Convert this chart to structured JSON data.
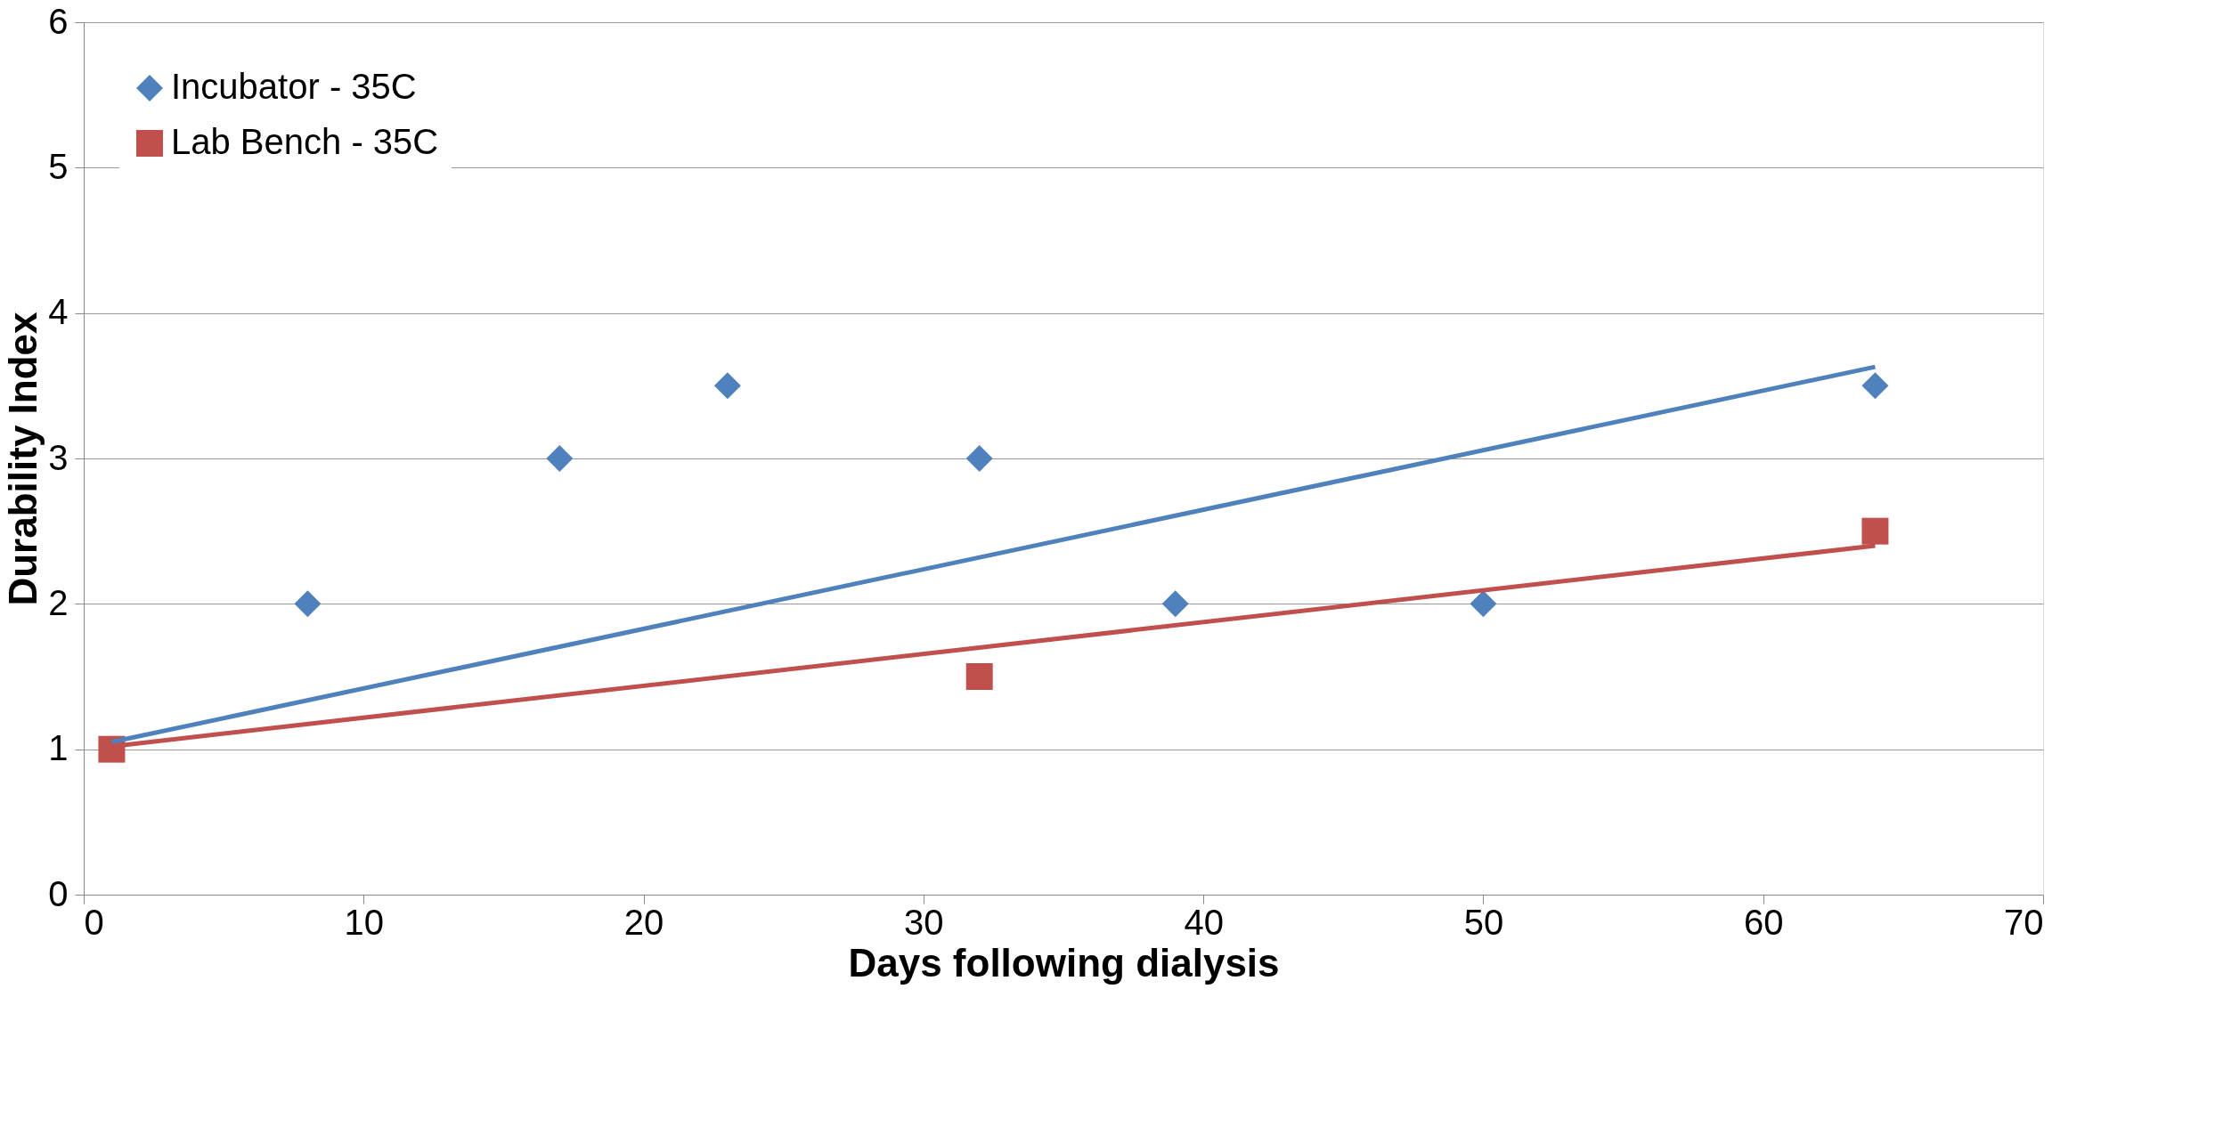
{
  "chart_data": {
    "type": "scatter",
    "xlabel": "Days following dialysis",
    "ylabel": "Durability Index",
    "xlim": [
      0,
      70
    ],
    "xticks": [
      0,
      10,
      20,
      30,
      40,
      50,
      60,
      70
    ],
    "ylim": [
      0,
      6
    ],
    "yticks": [
      0,
      1,
      2,
      3,
      4,
      5,
      6
    ],
    "grid": "y",
    "legend": "top left",
    "series": [
      {
        "name": "Incubator - 35C",
        "color": "#4f81bd",
        "marker": "diamond",
        "x": [
          8,
          17,
          23,
          32,
          39,
          50,
          64
        ],
        "values": [
          2,
          3,
          3.5,
          3,
          2,
          2,
          3.5
        ]
      },
      {
        "name": "Lab Bench - 35C",
        "color": "#c0504d",
        "marker": "square",
        "x": [
          1,
          32,
          64
        ],
        "values": [
          1,
          1.5,
          2.5
        ]
      },
      {
        "type": "line",
        "color": "#4f81bd",
        "x": [
          1,
          64
        ],
        "values": [
          1.05,
          3.63
        ]
      },
      {
        "type": "line",
        "color": "#c0504d",
        "x": [
          1,
          64
        ],
        "values": [
          1.02,
          2.4
        ]
      }
    ]
  }
}
